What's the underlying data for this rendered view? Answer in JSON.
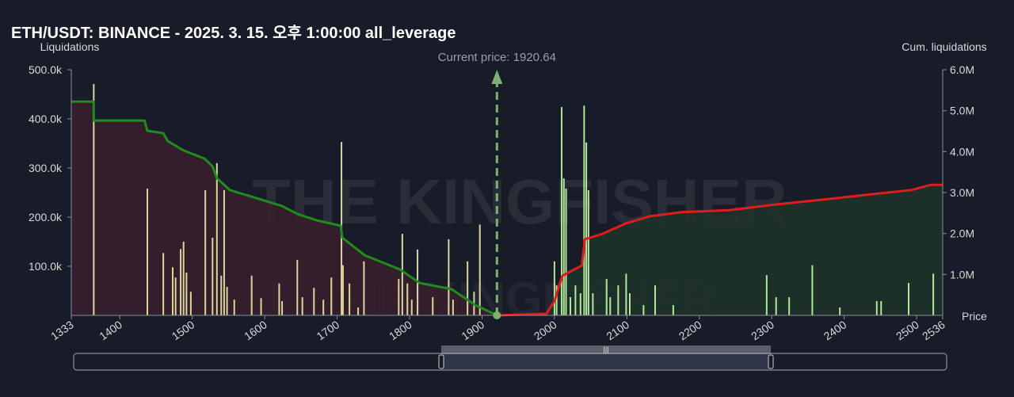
{
  "chart_data": {
    "type": "bar",
    "title": "ETH/USDT: BINANCE - 2025. 3. 15. 오후 1:00:00 all_leverage",
    "y_label": "Liquidations",
    "y2_label": "Cum. liquidations",
    "x_label": "Price",
    "annotation": "Current price: 1920.64",
    "current_price": 1920.64,
    "watermark": "THE KINGFISHER",
    "watermark_suffix": ".io",
    "xlim": [
      1333,
      2536
    ],
    "xticks": [
      1333,
      1400,
      1500,
      1600,
      1700,
      1800,
      1900,
      2000,
      2100,
      2200,
      2300,
      2400,
      2500,
      2536
    ],
    "ylim": [
      0,
      500000
    ],
    "yticks": [
      {
        "value": 100000,
        "label": "100.0k"
      },
      {
        "value": 200000,
        "label": "200.0k"
      },
      {
        "value": 300000,
        "label": "300.0k"
      },
      {
        "value": 400000,
        "label": "400.0k"
      },
      {
        "value": 500000,
        "label": "500.0k"
      }
    ],
    "y2lim": [
      0,
      6000000
    ],
    "y2ticks": [
      {
        "value": 1000000,
        "label": "1.0M"
      },
      {
        "value": 2000000,
        "label": "2.0M"
      },
      {
        "value": 3000000,
        "label": "3.0M"
      },
      {
        "value": 4000000,
        "label": "4.0M"
      },
      {
        "value": 5000000,
        "label": "5.0M"
      },
      {
        "value": 6000000,
        "label": "6.0M"
      }
    ],
    "series": [
      {
        "color": "#d8d89c",
        "x": [
          1364,
          1438,
          1460,
          1473,
          1477,
          1484,
          1488,
          1492,
          1498,
          1518,
          1528,
          1534,
          1540,
          1544,
          1548,
          1558,
          1582,
          1595,
          1620,
          1624,
          1645,
          1652,
          1668,
          1681,
          1692,
          1706,
          1708,
          1717,
          1729,
          1737,
          1785,
          1790,
          1797,
          1803,
          1811,
          1832,
          1854,
          1860,
          1880,
          1889,
          1897
        ],
        "values": [
          471000,
          258000,
          127000,
          98000,
          77000,
          135000,
          150000,
          87000,
          48000,
          255000,
          158000,
          310000,
          81000,
          255000,
          58000,
          32000,
          81000,
          35000,
          65000,
          29000,
          113000,
          37000,
          56000,
          32000,
          77000,
          353000,
          102000,
          65000,
          16000,
          110000,
          74000,
          166000,
          65000,
          32000,
          134000,
          37000,
          155000,
          32000,
          110000,
          48000,
          185000
        ]
      },
      {
        "color": "#b2e69a",
        "x": [
          2000,
          2003,
          2010,
          2013,
          2016,
          2022,
          2029,
          2036,
          2041,
          2044,
          2047,
          2053,
          2072,
          2077,
          2088,
          2099,
          2104,
          2123,
          2139,
          2164,
          2293,
          2306,
          2324,
          2356,
          2394,
          2445,
          2451,
          2489,
          2523
        ],
        "values": [
          110000,
          61000,
          424000,
          279000,
          258000,
          37000,
          61000,
          45000,
          427000,
          352000,
          255000,
          45000,
          74000,
          37000,
          61000,
          85000,
          45000,
          21000,
          61000,
          21000,
          82000,
          37000,
          37000,
          102000,
          16000,
          29000,
          29000,
          66000,
          85000
        ]
      },
      {
        "type": "line",
        "axis": "y2",
        "color": "#1e8c1e",
        "fill": "#3a1f2c",
        "x": [
          1333,
          1364,
          1364,
          1434,
          1438,
          1460,
          1466,
          1488,
          1517,
          1528,
          1534,
          1552,
          1595,
          1624,
          1645,
          1672,
          1705,
          1707,
          1738,
          1787,
          1814,
          1858,
          1891,
          1921
        ],
        "values": [
          5220000,
          5220000,
          4760000,
          4760000,
          4510000,
          4450000,
          4260000,
          4030000,
          3830000,
          3640000,
          3350000,
          3060000,
          2830000,
          2670000,
          2480000,
          2320000,
          2190000,
          1900000,
          1470000,
          1120000,
          790000,
          640000,
          250000,
          0
        ]
      },
      {
        "type": "line",
        "axis": "y2",
        "color": "#e01c1c",
        "fill": "#1e3329",
        "x": [
          1921,
          1989,
          2000,
          2011,
          2038,
          2042,
          2066,
          2099,
          2131,
          2175,
          2241,
          2306,
          2372,
          2438,
          2492,
          2520,
          2536
        ],
        "values": [
          0,
          40000,
          350000,
          970000,
          1220000,
          1860000,
          1990000,
          2250000,
          2420000,
          2520000,
          2570000,
          2710000,
          2830000,
          2960000,
          3060000,
          3190000,
          3190000
        ]
      }
    ]
  }
}
